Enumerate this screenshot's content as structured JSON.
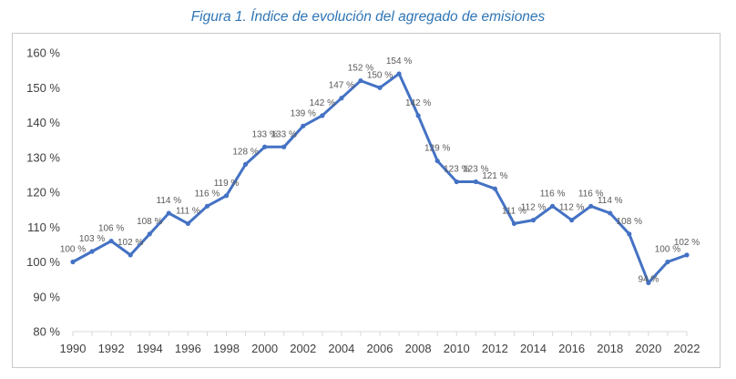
{
  "chart_data": {
    "type": "line",
    "title": "Figura 1. Índice de evolución del agregado de emisiones",
    "xlabel": "",
    "ylabel": "",
    "x": [
      1990,
      1991,
      1992,
      1993,
      1994,
      1995,
      1996,
      1997,
      1998,
      1999,
      2000,
      2001,
      2002,
      2003,
      2004,
      2005,
      2006,
      2007,
      2008,
      2009,
      2010,
      2011,
      2012,
      2013,
      2014,
      2015,
      2016,
      2017,
      2018,
      2019,
      2020,
      2021,
      2022
    ],
    "series": [
      {
        "values": [
          100,
          103,
          106,
          102,
          108,
          114,
          111,
          116,
          119,
          128,
          133,
          133,
          139,
          142,
          147,
          152,
          150,
          154,
          142,
          129,
          123,
          123,
          121,
          111,
          112,
          116,
          112,
          116,
          114,
          108,
          94,
          100,
          102
        ],
        "labels": [
          "100 %",
          "103 %",
          "106 %",
          "102 %",
          "108 %",
          "114 %",
          "111 %",
          "116 %",
          "119 %",
          "128 %",
          "133 %",
          "133 %",
          "139 %",
          "142 %",
          "147 %",
          "152 %",
          "150 %",
          "154 %",
          "142 %",
          "129 %",
          "123 %",
          "123 %",
          "121 %",
          "111 %",
          "112 %",
          "116 %",
          "112 %",
          "116 %",
          "114 %",
          "108 %",
          "94 %",
          "100 %",
          "102 %"
        ],
        "color": "#4472C4"
      }
    ],
    "ylim": [
      80,
      160
    ],
    "yticks": [
      80,
      90,
      100,
      110,
      120,
      130,
      140,
      150,
      160
    ],
    "ytick_labels": [
      "80 %",
      "90 %",
      "100 %",
      "110 %",
      "120 %",
      "130 %",
      "140 %",
      "150 %",
      "160 %"
    ],
    "xticks": [
      1990,
      1992,
      1994,
      1996,
      1998,
      2000,
      2002,
      2004,
      2006,
      2008,
      2010,
      2012,
      2014,
      2016,
      2018,
      2020,
      2022
    ],
    "xtick_labels": [
      "1990",
      "1992",
      "1994",
      "1996",
      "1998",
      "2000",
      "2002",
      "2004",
      "2006",
      "2008",
      "2010",
      "2012",
      "2014",
      "2016",
      "2018",
      "2020",
      "2022"
    ],
    "grid": false,
    "legend": "none"
  }
}
